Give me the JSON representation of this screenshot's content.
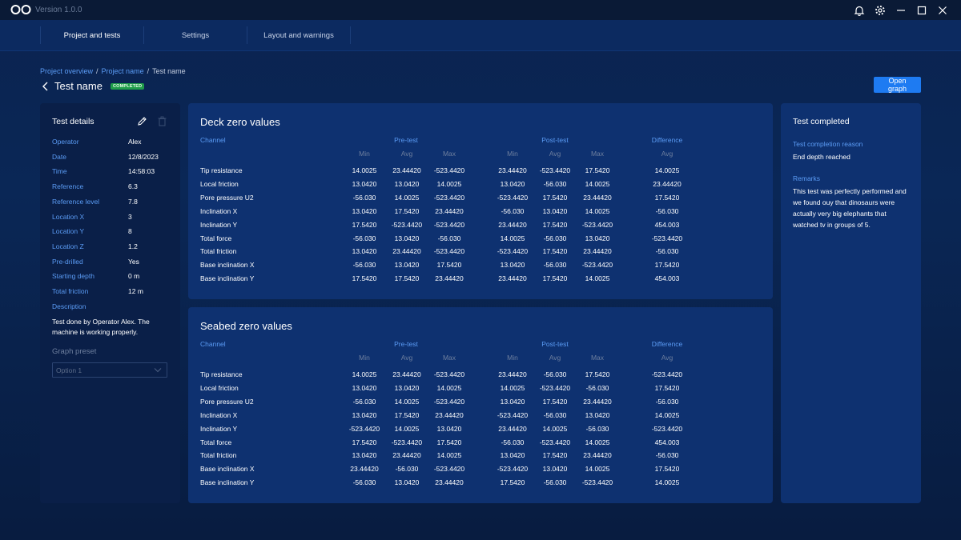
{
  "app": {
    "version": "Version 1.0.0"
  },
  "nav": {
    "tabs": [
      "Project and tests",
      "Settings",
      "Layout and warnings"
    ]
  },
  "breadcrumb": {
    "items": [
      "Project overview",
      "Project name",
      "Test name"
    ]
  },
  "page": {
    "title": "Test name",
    "status": "COMPLETED",
    "open_graph_label": "Open graph"
  },
  "test_details": {
    "title": "Test details",
    "fields": [
      {
        "label": "Operator",
        "value": "Alex"
      },
      {
        "label": "Date",
        "value": "12/8/2023"
      },
      {
        "label": "Time",
        "value": "14:58:03"
      },
      {
        "label": "Reference",
        "value": "6.3"
      },
      {
        "label": "Reference level",
        "value": "7.8"
      },
      {
        "label": "Location X",
        "value": "3"
      },
      {
        "label": "Location Y",
        "value": "8"
      },
      {
        "label": "Location Z",
        "value": "1.2"
      },
      {
        "label": "Pre-drilled",
        "value": "Yes"
      },
      {
        "label": "Starting depth",
        "value": "0 m"
      },
      {
        "label": "Total friction",
        "value": "12 m"
      }
    ],
    "description_label": "Description",
    "description": "Test done by Operator Alex. The machine is working properly.",
    "graph_preset_label": "Graph preset",
    "graph_preset_value": "Option 1"
  },
  "test_completed": {
    "title": "Test completed",
    "reason_label": "Test completion reason",
    "reason": "End depth reached",
    "remarks_label": "Remarks",
    "remarks": "This test was perfectly performed and we found ouy that dinosaurs were actually very big elephants that watched tv in groups of 5."
  },
  "table_headers": {
    "channel": "Channel",
    "pre": "Pre-test",
    "post": "Post-test",
    "diff": "Difference",
    "min": "Min",
    "avg": "Avg",
    "max": "Max"
  },
  "deck": {
    "title": "Deck zero values",
    "rows": [
      {
        "channel": "Tip resistance",
        "values": [
          "14.0025",
          "23.44420",
          "-523.4420",
          "23.44420",
          "-523.4420",
          "17.5420",
          "14.0025"
        ]
      },
      {
        "channel": "Local friction",
        "values": [
          "13.0420",
          "13.0420",
          "14.0025",
          "13.0420",
          "-56.030",
          "14.0025",
          "23.44420"
        ]
      },
      {
        "channel": "Pore pressure U2",
        "values": [
          "-56.030",
          "14.0025",
          "-523.4420",
          "-523.4420",
          "17.5420",
          "23.44420",
          "17.5420"
        ]
      },
      {
        "channel": "Inclination X",
        "values": [
          "13.0420",
          "17.5420",
          "23.44420",
          "-56.030",
          "13.0420",
          "14.0025",
          "-56.030"
        ]
      },
      {
        "channel": "Inclination Y",
        "values": [
          "17.5420",
          "-523.4420",
          "-523.4420",
          "23.44420",
          "17.5420",
          "-523.4420",
          "454.003"
        ]
      },
      {
        "channel": "Total force",
        "values": [
          "-56.030",
          "13.0420",
          "-56.030",
          "14.0025",
          "-56.030",
          "13.0420",
          "-523.4420"
        ]
      },
      {
        "channel": "Total friction",
        "values": [
          "13.0420",
          "23.44420",
          "-523.4420",
          "-523.4420",
          "17.5420",
          "23.44420",
          "-56.030"
        ]
      },
      {
        "channel": "Base inclination X",
        "values": [
          "-56.030",
          "13.0420",
          "17.5420",
          "13.0420",
          "-56.030",
          "-523.4420",
          "17.5420"
        ]
      },
      {
        "channel": "Base inclination Y",
        "values": [
          "17.5420",
          "17.5420",
          "23.44420",
          "23.44420",
          "17.5420",
          "14.0025",
          "454.003"
        ]
      }
    ]
  },
  "seabed": {
    "title": "Seabed zero values",
    "rows": [
      {
        "channel": "Tip resistance",
        "values": [
          "14.0025",
          "23.44420",
          "-523.4420",
          "23.44420",
          "-56.030",
          "17.5420",
          "-523.4420"
        ]
      },
      {
        "channel": "Local friction",
        "values": [
          "13.0420",
          "13.0420",
          "14.0025",
          "14.0025",
          "-523.4420",
          "-56.030",
          "17.5420"
        ]
      },
      {
        "channel": "Pore pressure U2",
        "values": [
          "-56.030",
          "14.0025",
          "-523.4420",
          "13.0420",
          "17.5420",
          "23.44420",
          "-56.030"
        ]
      },
      {
        "channel": "Inclination X",
        "values": [
          "13.0420",
          "17.5420",
          "23.44420",
          "-523.4420",
          "-56.030",
          "13.0420",
          "14.0025"
        ]
      },
      {
        "channel": "Inclination Y",
        "values": [
          "-523.4420",
          "14.0025",
          "13.0420",
          "23.44420",
          "14.0025",
          "-56.030",
          "-523.4420"
        ]
      },
      {
        "channel": "Total force",
        "values": [
          "17.5420",
          "-523.4420",
          "17.5420",
          "-56.030",
          "-523.4420",
          "14.0025",
          "454.003"
        ]
      },
      {
        "channel": "Total friction",
        "values": [
          "13.0420",
          "23.44420",
          "14.0025",
          "13.0420",
          "17.5420",
          "23.44420",
          "-56.030"
        ]
      },
      {
        "channel": "Base inclination X",
        "values": [
          "23.44420",
          "-56.030",
          "-523.4420",
          "-523.4420",
          "13.0420",
          "14.0025",
          "17.5420"
        ]
      },
      {
        "channel": "Base inclination Y",
        "values": [
          "-56.030",
          "13.0420",
          "23.44420",
          "17.5420",
          "-56.030",
          "-523.4420",
          "14.0025"
        ]
      }
    ]
  },
  "colors": {
    "accent": "#1e7bf2",
    "link": "#5b9cf5",
    "status_green": "#1f9d4a",
    "panel": "#0e3170"
  },
  "icons": [
    "logo-icon",
    "bell-icon",
    "gear-icon",
    "minimize-icon",
    "maximize-icon",
    "close-icon",
    "back-chevron-icon",
    "pencil-icon",
    "trash-icon",
    "chevron-down-icon"
  ]
}
